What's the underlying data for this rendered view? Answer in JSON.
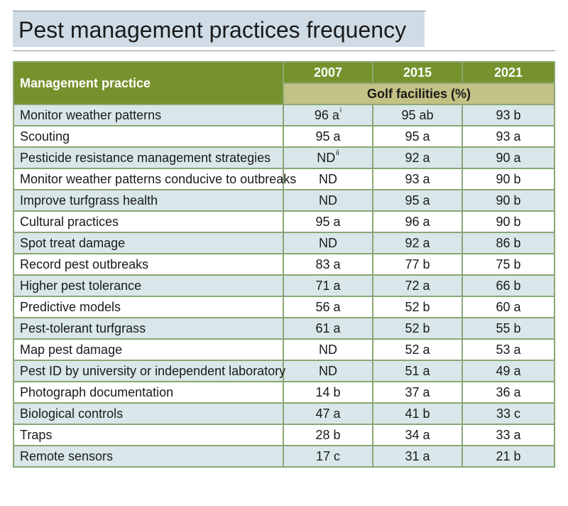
{
  "title": "Pest management practices frequency",
  "table": {
    "practice_header": "Management practice",
    "years": [
      "2007",
      "2015",
      "2021"
    ],
    "unit_header": "Golf facilities (%)",
    "rows": [
      {
        "practice": "Monitor weather patterns",
        "v2007": "96 a",
        "v2007_sup": "i",
        "v2015": "95 ab",
        "v2021": "93 b"
      },
      {
        "practice": "Scouting",
        "v2007": "95 a",
        "v2007_sup": "",
        "v2015": "95 a",
        "v2021": "93 a"
      },
      {
        "practice": "Pesticide resistance management strategies",
        "v2007": "ND",
        "v2007_sup": "ii",
        "v2015": "92 a",
        "v2021": "90 a"
      },
      {
        "practice": "Monitor weather patterns conducive to outbreaks",
        "v2007": "ND",
        "v2007_sup": "",
        "v2015": "93 a",
        "v2021": "90 b"
      },
      {
        "practice": "Improve turfgrass health",
        "v2007": "ND",
        "v2007_sup": "",
        "v2015": "95 a",
        "v2021": "90 b"
      },
      {
        "practice": "Cultural practices",
        "v2007": "95 a",
        "v2007_sup": "",
        "v2015": "96 a",
        "v2021": "90 b"
      },
      {
        "practice": "Spot treat damage",
        "v2007": "ND",
        "v2007_sup": "",
        "v2015": "92 a",
        "v2021": "86 b"
      },
      {
        "practice": "Record pest outbreaks",
        "v2007": "83 a",
        "v2007_sup": "",
        "v2015": "77 b",
        "v2021": "75 b"
      },
      {
        "practice": "Higher pest tolerance",
        "v2007": "71 a",
        "v2007_sup": "",
        "v2015": "72 a",
        "v2021": "66 b"
      },
      {
        "practice": "Predictive models",
        "v2007": "56 a",
        "v2007_sup": "",
        "v2015": "52 b",
        "v2021": "60 a"
      },
      {
        "practice": "Pest-tolerant turfgrass",
        "v2007": "61 a",
        "v2007_sup": "",
        "v2015": "52 b",
        "v2021": "55 b"
      },
      {
        "practice": "Map pest damage",
        "v2007": "ND",
        "v2007_sup": "",
        "v2015": "52 a",
        "v2021": "53 a"
      },
      {
        "practice": "Pest ID by university or independent laboratory",
        "v2007": "ND",
        "v2007_sup": "",
        "v2015": "51 a",
        "v2021": "49 a"
      },
      {
        "practice": "Photograph documentation",
        "v2007": "14 b",
        "v2007_sup": "",
        "v2015": "37 a",
        "v2021": "36 a"
      },
      {
        "practice": "Biological controls",
        "v2007": "47 a",
        "v2007_sup": "",
        "v2015": "41 b",
        "v2021": "33 c"
      },
      {
        "practice": "Traps",
        "v2007": "28 b",
        "v2007_sup": "",
        "v2015": "34 a",
        "v2021": "33 a"
      },
      {
        "practice": "Remote sensors",
        "v2007": "17 c",
        "v2007_sup": "",
        "v2015": "31 a",
        "v2021": "21 b"
      }
    ]
  },
  "colors": {
    "header_green": "#76922d",
    "subheader_tan": "#c3c285",
    "row_blue": "#d9e7ea",
    "title_band": "#cfdce6"
  }
}
